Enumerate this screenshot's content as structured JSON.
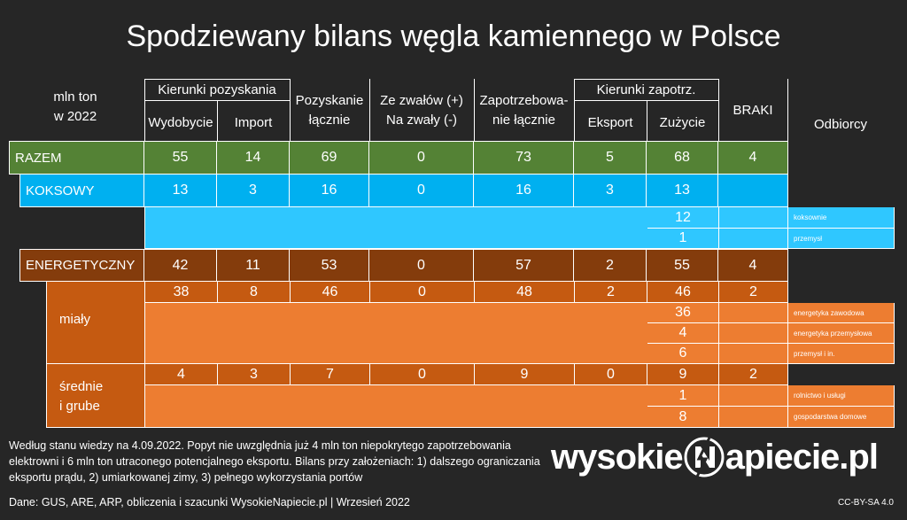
{
  "title": "Spodziewany bilans węgla kamiennego w Polsce",
  "unit_label_1": "mln ton",
  "unit_label_2": "w 2022",
  "group_headers": {
    "pozyskania": "Kierunki pozyskania",
    "zapotrz": "Kierunki zapotrz."
  },
  "columns": {
    "wydobycie": "Wydobycie",
    "import": "Import",
    "pozyskanie_1": "Pozyskanie",
    "pozyskanie_2": "łącznie",
    "zwaly_1": "Ze zwałów (+)",
    "zwaly_2": "Na zwały (-)",
    "zapotrz_1": "Zapotrzebowa-",
    "zapotrz_2": "nie łącznie",
    "eksport": "Eksport",
    "zuzycie": "Zużycie",
    "braki": "BRAKI",
    "odbiorcy": "Odbiorcy"
  },
  "rows": {
    "razem": {
      "label": "RAZEM",
      "values": [
        "55",
        "14",
        "69",
        "0",
        "73",
        "5",
        "68",
        "4"
      ]
    },
    "koksowy": {
      "label": "KOKSOWY",
      "values": [
        "13",
        "3",
        "16",
        "0",
        "16",
        "3",
        "13",
        ""
      ]
    },
    "koksowy_sub": [
      {
        "value": "12",
        "odbiorca": "koksownie"
      },
      {
        "value": "1",
        "odbiorca": "przemysł"
      }
    ],
    "energetyczny": {
      "label": "ENERGETYCZNY",
      "values": [
        "42",
        "11",
        "53",
        "0",
        "57",
        "2",
        "55",
        "4"
      ]
    },
    "mialy": {
      "label": "miały",
      "values": [
        "38",
        "8",
        "46",
        "0",
        "48",
        "2",
        "46",
        "2"
      ]
    },
    "mialy_sub": [
      {
        "value": "36",
        "odbiorca": "energetyka zawodowa"
      },
      {
        "value": "4",
        "odbiorca": "energetyka przemysłowa"
      },
      {
        "value": "6",
        "odbiorca": "przemysł i in."
      }
    ],
    "srednie": {
      "label_1": "średnie",
      "label_2": "i grube",
      "values": [
        "4",
        "3",
        "7",
        "0",
        "9",
        "0",
        "9",
        "2"
      ]
    },
    "srednie_sub": [
      {
        "value": "1",
        "odbiorca": "rolnictwo i usługi"
      },
      {
        "value": "8",
        "odbiorca": "gospodarstwa domowe"
      }
    ]
  },
  "note": "Według stanu wiedzy na 4.09.2022. Popyt nie uwzględnia już 4 mln ton niepokrytego zapotrzebowania elektrowni i 6 mln ton utraconego potencjalnego eksportu. Bilans przy założeniach: 1) dalszego ograniczania eksportu prądu, 2) umiarkowanej zimy, 3) pełnego wykorzystania portów",
  "footer": "Dane: GUS, ARE, ARP, obliczenia i szacunki WysokieNapiecie.pl  |  Wrzesień 2022",
  "license": "CC-BY-SA 4.0",
  "logo": {
    "part1": "wysokie",
    "part2": "apiecie.pl"
  },
  "colors": {
    "green": "#548235",
    "blue": "#00b0f0",
    "brown": "#843c0c",
    "orange": "#c55a11",
    "light_orange": "#ed7d31"
  }
}
